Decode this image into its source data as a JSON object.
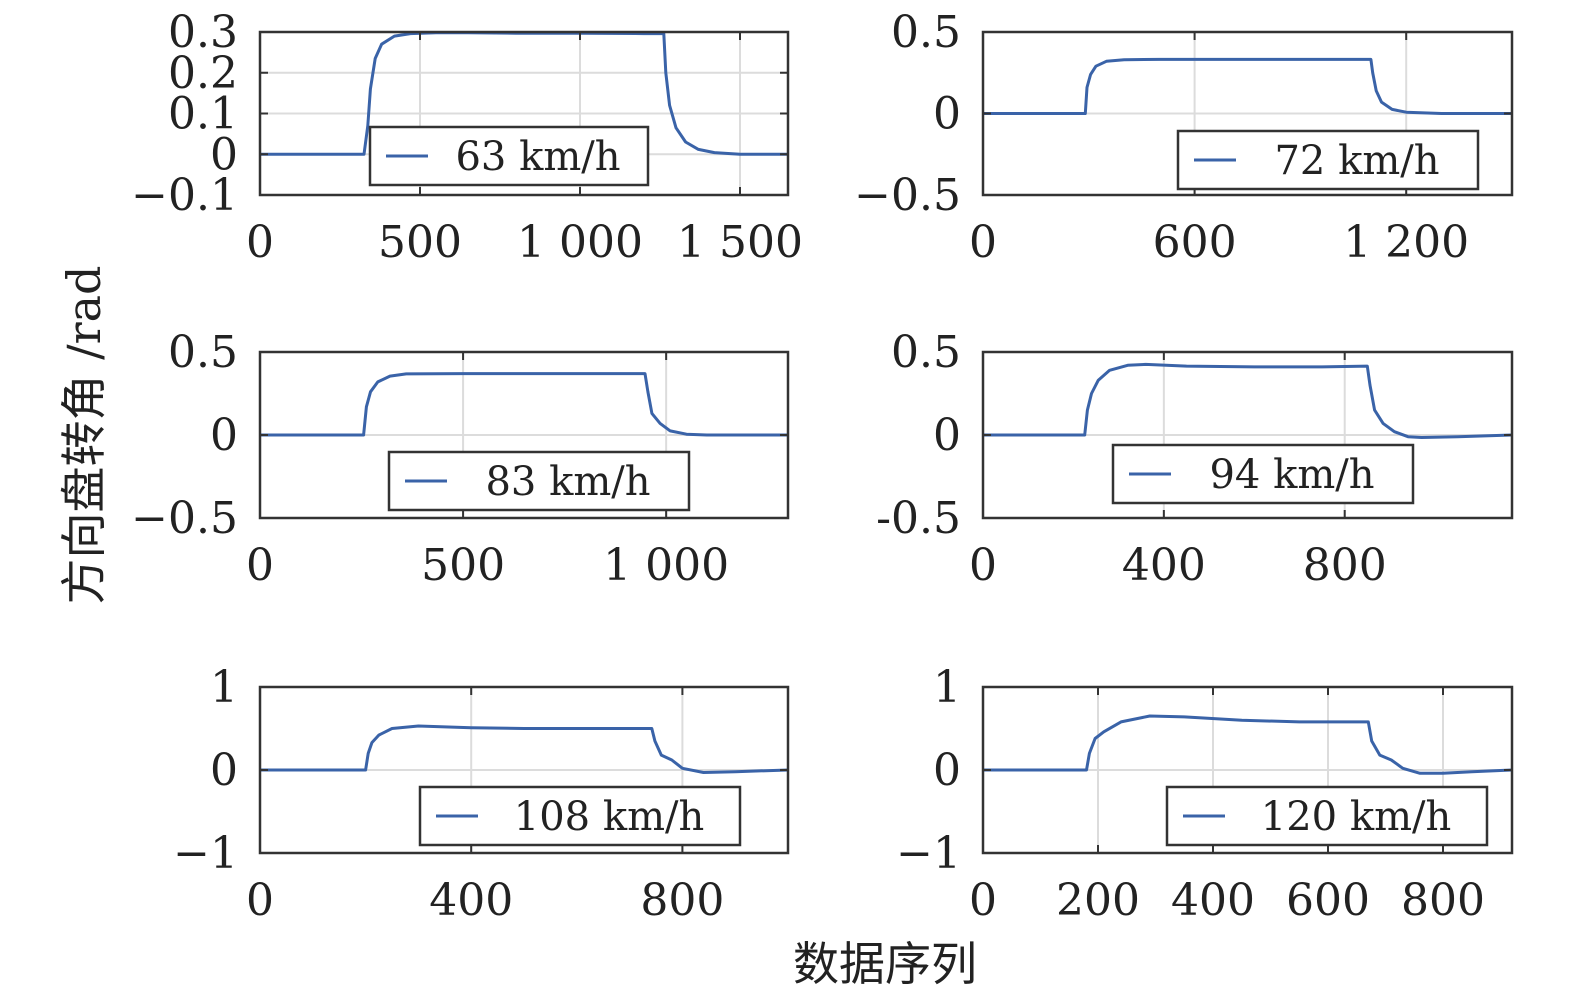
{
  "y_axis_title": "方向盘转角 /rad",
  "x_axis_title": "数据序列",
  "line_color": "#3a63a8",
  "chart_data": [
    {
      "type": "line",
      "series": [
        {
          "name": "63 km/h",
          "x": [
            0,
            325,
            337,
            345,
            360,
            380,
            420,
            470,
            550,
            650,
            800,
            1000,
            1200,
            1262,
            1268,
            1280,
            1300,
            1330,
            1370,
            1420,
            1500,
            1650
          ],
          "y": [
            0,
            0,
            0.07,
            0.16,
            0.235,
            0.27,
            0.29,
            0.296,
            0.298,
            0.298,
            0.297,
            0.297,
            0.296,
            0.296,
            0.2,
            0.12,
            0.065,
            0.03,
            0.012,
            0.004,
            0.0,
            0.0
          ]
        }
      ],
      "xlim": [
        0,
        1650
      ],
      "ylim": [
        -0.1,
        0.3
      ],
      "xticks": [
        0,
        500,
        1000,
        1500
      ],
      "xtick_labels": [
        "0",
        "500",
        "1 000",
        "1 500"
      ],
      "yticks": [
        -0.1,
        0,
        0.1,
        0.2,
        0.3
      ],
      "ytick_labels": [
        "−0.1",
        "0",
        "0.1",
        "0.2",
        "0.3"
      ],
      "grid": true,
      "legend": "bottom-center"
    },
    {
      "type": "line",
      "series": [
        {
          "name": "72 km/h",
          "x": [
            0,
            290,
            295,
            305,
            320,
            350,
            400,
            500,
            700,
            900,
            1100,
            1105,
            1115,
            1130,
            1160,
            1200,
            1300,
            1500
          ],
          "y": [
            0,
            0,
            0.16,
            0.24,
            0.29,
            0.32,
            0.33,
            0.332,
            0.332,
            0.332,
            0.332,
            0.25,
            0.14,
            0.07,
            0.025,
            0.008,
            0.0,
            0.0
          ]
        }
      ],
      "xlim": [
        0,
        1500
      ],
      "ylim": [
        -0.5,
        0.5
      ],
      "xticks": [
        0,
        600,
        1200
      ],
      "xtick_labels": [
        "0",
        "600",
        "1 200"
      ],
      "yticks": [
        -0.5,
        0,
        0.5
      ],
      "ytick_labels": [
        "−0.5",
        "0",
        "0.5"
      ],
      "grid": true,
      "legend": "bottom-right"
    },
    {
      "type": "line",
      "series": [
        {
          "name": "83 km/h",
          "x": [
            0,
            255,
            262,
            272,
            290,
            320,
            360,
            500,
            700,
            900,
            948,
            955,
            965,
            985,
            1010,
            1050,
            1100,
            1300
          ],
          "y": [
            0,
            0,
            0.17,
            0.26,
            0.32,
            0.355,
            0.368,
            0.37,
            0.37,
            0.37,
            0.37,
            0.26,
            0.13,
            0.07,
            0.025,
            0.005,
            0.0,
            0.0
          ]
        }
      ],
      "xlim": [
        0,
        1300
      ],
      "ylim": [
        -0.5,
        0.5
      ],
      "xticks": [
        0,
        500,
        1000
      ],
      "xtick_labels": [
        "0",
        "500",
        "1 000"
      ],
      "yticks": [
        -0.5,
        0,
        0.5
      ],
      "ytick_labels": [
        "−0.5",
        "0",
        "0.5"
      ],
      "grid": true,
      "legend": "bottom-center"
    },
    {
      "type": "line",
      "series": [
        {
          "name": "94 km/h",
          "x": [
            0,
            225,
            231,
            240,
            255,
            280,
            320,
            360,
            450,
            600,
            750,
            850,
            856,
            866,
            885,
            910,
            940,
            970,
            1050,
            1170
          ],
          "y": [
            0,
            0,
            0.15,
            0.25,
            0.33,
            0.39,
            0.42,
            0.425,
            0.415,
            0.41,
            0.41,
            0.415,
            0.3,
            0.15,
            0.07,
            0.02,
            -0.01,
            -0.015,
            -0.01,
            0.0
          ]
        }
      ],
      "xlim": [
        0,
        1170
      ],
      "ylim": [
        -0.5,
        0.5
      ],
      "xticks": [
        0,
        400,
        800
      ],
      "xtick_labels": [
        "0",
        "400",
        "800"
      ],
      "yticks": [
        -0.5,
        0,
        0.5
      ],
      "ytick_labels": [
        "-0.5",
        "0",
        "0.5"
      ],
      "grid": true,
      "legend": "bottom-right"
    },
    {
      "type": "line",
      "series": [
        {
          "name": "108 km/h",
          "x": [
            0,
            200,
            205,
            212,
            225,
            250,
            300,
            400,
            500,
            600,
            700,
            742,
            748,
            760,
            780,
            800,
            840,
            900,
            1000
          ],
          "y": [
            0,
            0,
            0.2,
            0.33,
            0.42,
            0.5,
            0.53,
            0.51,
            0.5,
            0.5,
            0.5,
            0.5,
            0.35,
            0.18,
            0.12,
            0.02,
            -0.03,
            -0.02,
            0.0
          ]
        }
      ],
      "xlim": [
        0,
        1000
      ],
      "ylim": [
        -1,
        1
      ],
      "xticks": [
        0,
        400,
        800
      ],
      "xtick_labels": [
        "0",
        "400",
        "800"
      ],
      "yticks": [
        -1,
        0,
        1
      ],
      "ytick_labels": [
        "−1",
        "0",
        "1"
      ],
      "grid": true,
      "legend": "bottom-center"
    },
    {
      "type": "line",
      "series": [
        {
          "name": "120 km/h",
          "x": [
            0,
            180,
            185,
            195,
            210,
            240,
            290,
            350,
            450,
            550,
            650,
            670,
            676,
            690,
            710,
            730,
            760,
            800,
            850,
            920
          ],
          "y": [
            0,
            0,
            0.2,
            0.38,
            0.46,
            0.58,
            0.65,
            0.64,
            0.6,
            0.58,
            0.58,
            0.58,
            0.35,
            0.18,
            0.12,
            0.02,
            -0.04,
            -0.04,
            -0.02,
            0.0
          ]
        }
      ],
      "xlim": [
        0,
        920
      ],
      "ylim": [
        -1,
        1
      ],
      "xticks": [
        0,
        200,
        400,
        600,
        800
      ],
      "xtick_labels": [
        "0",
        "200",
        "400",
        "600",
        "800"
      ],
      "yticks": [
        -1,
        0,
        1
      ],
      "ytick_labels": [
        "−1",
        "0",
        "1"
      ],
      "grid": true,
      "legend": "bottom-right"
    }
  ]
}
